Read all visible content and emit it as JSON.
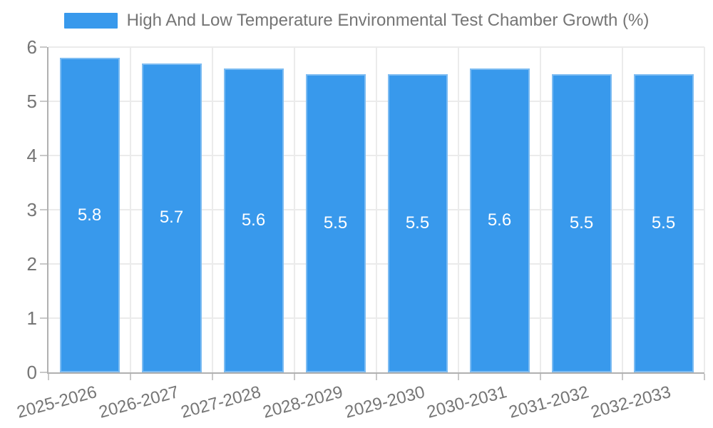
{
  "chart_data": {
    "type": "bar",
    "title": "High And Low Temperature Environmental Test Chamber Growth (%)",
    "categories": [
      "2025-2026",
      "2026-2027",
      "2027-2028",
      "2028-2029",
      "2029-2030",
      "2030-2031",
      "2031-2032",
      "2032-2033"
    ],
    "values": [
      5.8,
      5.7,
      5.6,
      5.5,
      5.5,
      5.6,
      5.5,
      5.5
    ],
    "value_labels": [
      "5.8",
      "5.7",
      "5.6",
      "5.5",
      "5.5",
      "5.6",
      "5.5",
      "5.5"
    ],
    "xlabel": "",
    "ylabel": "",
    "ylim": [
      0,
      6
    ],
    "yticks": [
      0,
      1,
      2,
      3,
      4,
      5,
      6
    ],
    "grid": true,
    "legend_position": "top",
    "colors": {
      "bar": "#3899ec",
      "bar_value_label": "#ffffff",
      "axis_text": "#757575",
      "legend_text": "#757575",
      "gridline": "#ebebeb",
      "axis_line": "#b0b0b0",
      "tick_mark": "#c9c9c9",
      "background": "#ffffff"
    }
  }
}
